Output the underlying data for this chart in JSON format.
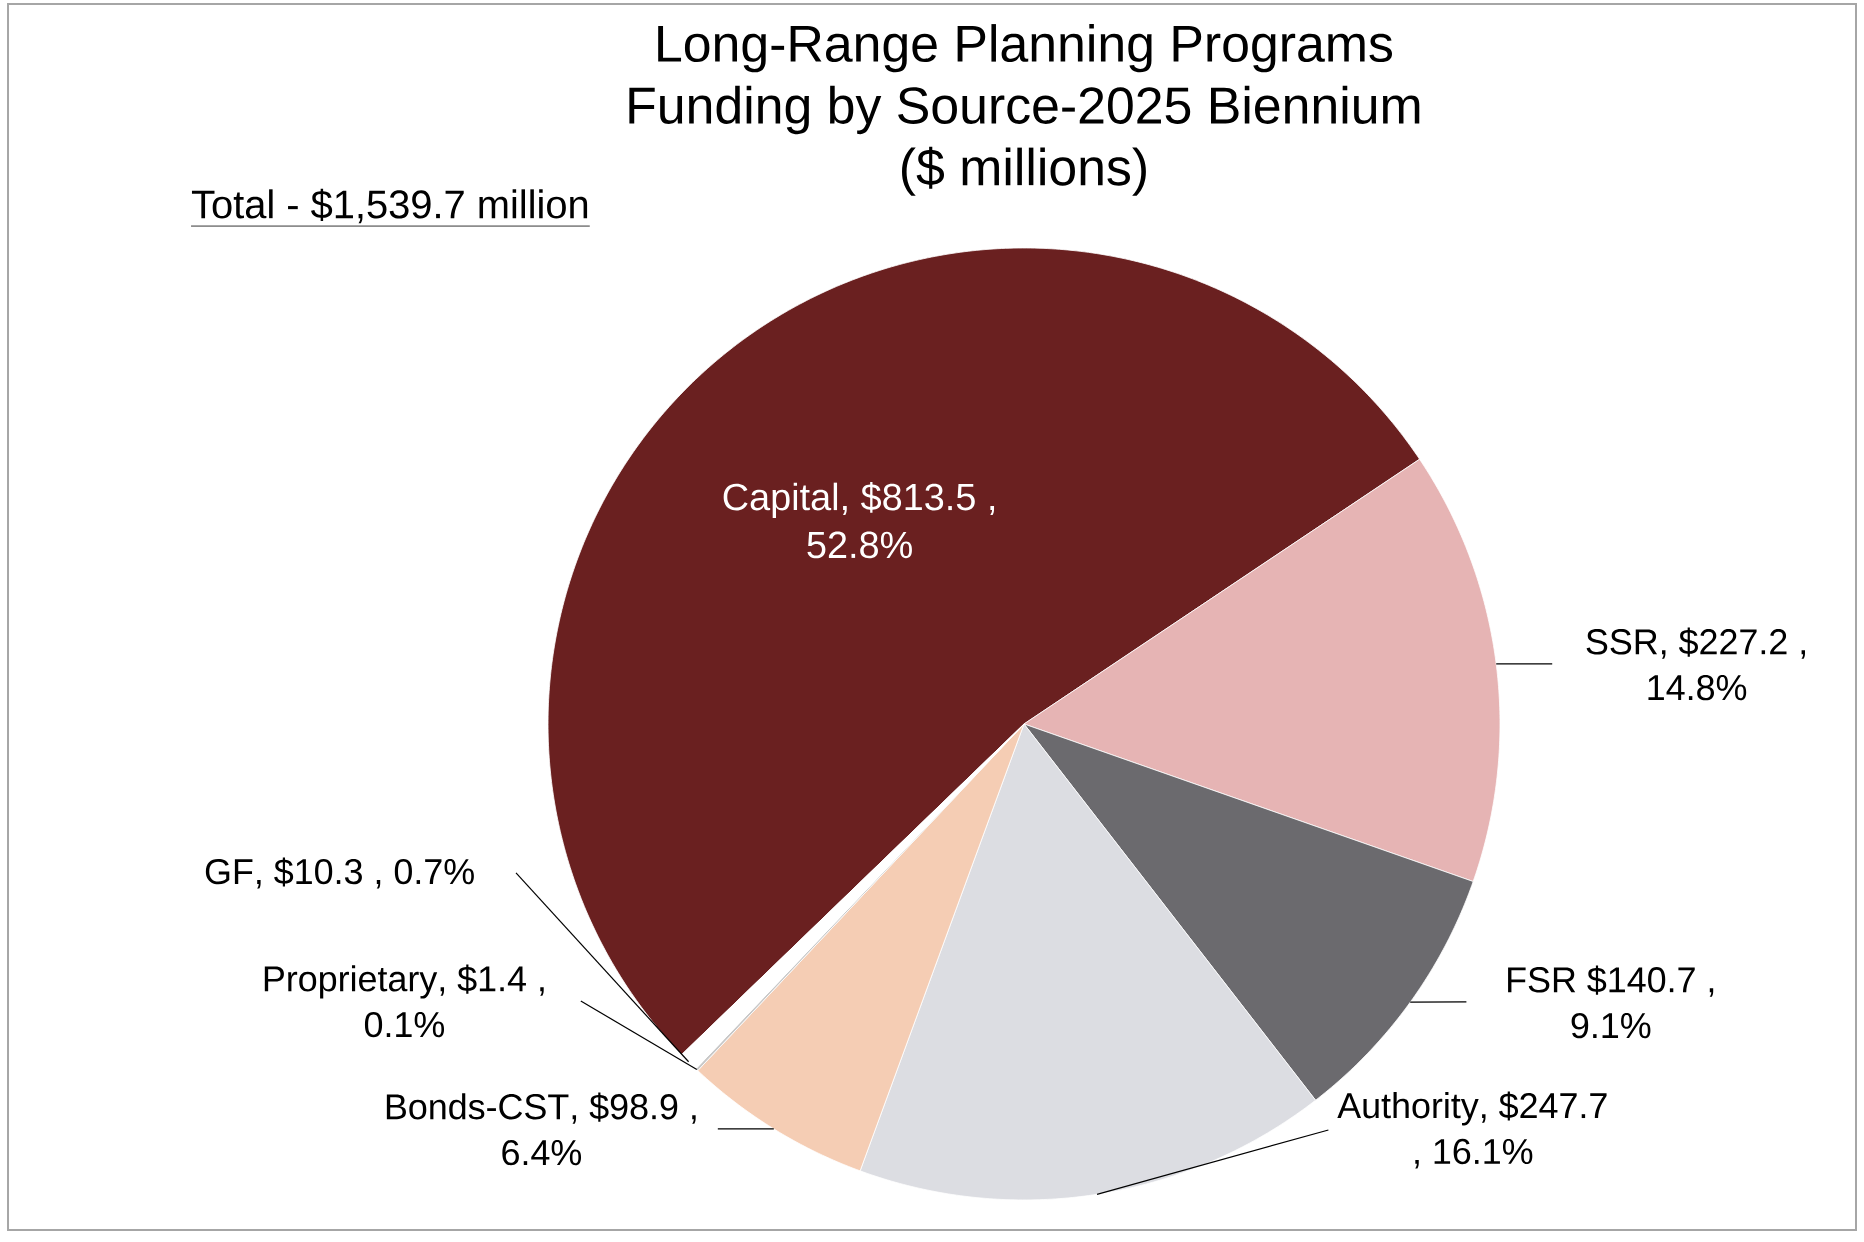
{
  "chart_data": {
    "type": "pie",
    "title": "Long-Range Planning Programs Funding by Source-2025 Biennium ($ millions)",
    "categories": [
      "Capital",
      "SSR",
      "FSR",
      "Authority",
      "Bonds-CST",
      "Proprietary",
      "GF"
    ],
    "values": [
      813.5,
      227.2,
      140.7,
      247.7,
      98.9,
      1.4,
      10.3
    ],
    "value_labels": [
      ", $813.5 , 52.8%",
      ", $227.2 , 14.8%",
      " $140.7 , 9.1%",
      ", $247.7 , 16.1%",
      ", $98.9 , 6.4%",
      ", $1.4 , 0.1%",
      ", $10.3 , 0.7%"
    ],
    "colors": [
      "#6a2020",
      "#e6b4b4",
      "#6b6a6e",
      "#dcdde2",
      "#f5cdb4",
      "#c8c8c8",
      "#ffffff"
    ],
    "annotations": [
      "Total - $1,539.7 million"
    ]
  }
}
